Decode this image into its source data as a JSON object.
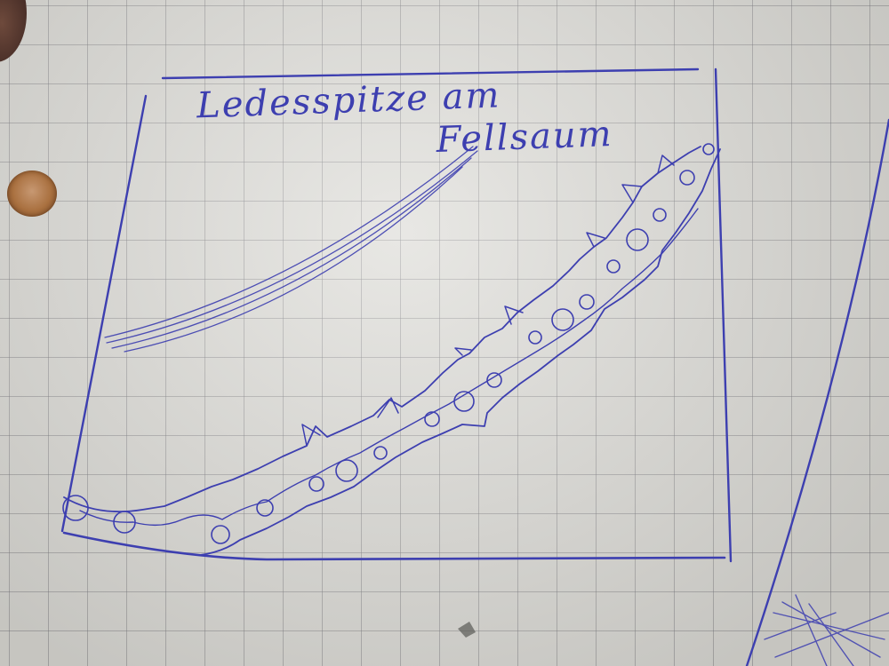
{
  "caption": {
    "line1": "Ledesspitze am",
    "line2": "Fellsaum"
  },
  "colors": {
    "ink": "#3d3fb0",
    "paper": "#dcdbd6",
    "grid": "#7a7a7f",
    "punch_hole": "#a9703f"
  }
}
